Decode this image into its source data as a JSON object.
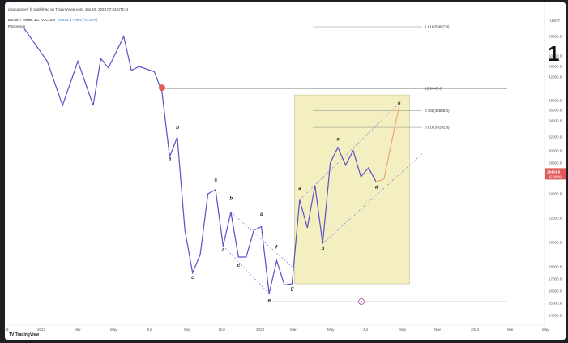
{
  "header": {
    "publisher": "josucabsher_fx published on TradingView.com, Jun 19, 2023 07:53 UTC-4",
    "symbol_line": "Bitcoin / Tether, 1D, KUCOIN",
    "price_info": "26424.5 +96.5 (+0.36%)",
    "indicator": "ParaVerde"
  },
  "annotation_number": "1",
  "footer": {
    "brand": "TradingView"
  },
  "chart_data": {
    "type": "line",
    "title": "",
    "ylabel": "USDT",
    "x_ticks": [
      "8",
      "2022",
      "Mar",
      "May",
      "Jul",
      "Sep",
      "Nov",
      "2023",
      "Mar",
      "May",
      "Jul",
      "Sep",
      "Nov",
      "2024",
      "Mar",
      "May"
    ],
    "y_ticks": [
      "55000.0",
      "50000.0",
      "46000.0",
      "42000.0",
      "38000.0",
      "36000.0",
      "34000.0",
      "32000.0",
      "30000.0",
      "28000.0",
      "26000.0",
      "24000.0",
      "22000.0",
      "20000.0",
      "18000.0",
      "17000.0",
      "16000.0",
      "15000.0",
      "14000.0"
    ],
    "price_path": [
      [
        0,
        57000
      ],
      [
        3,
        48000
      ],
      [
        5,
        37000
      ],
      [
        7,
        48000
      ],
      [
        9,
        37000
      ],
      [
        10,
        49000
      ],
      [
        11,
        45500
      ],
      [
        13,
        55000
      ],
      [
        14,
        44500
      ],
      [
        15,
        46000
      ],
      [
        17,
        44000
      ],
      [
        18,
        39500
      ],
      [
        19,
        29000
      ],
      [
        20,
        32000
      ],
      [
        21,
        21000
      ],
      [
        22,
        17500
      ],
      [
        23,
        19000
      ],
      [
        24,
        24000
      ],
      [
        25,
        24500
      ],
      [
        26,
        19700
      ],
      [
        27,
        22500
      ],
      [
        28,
        18800
      ],
      [
        29,
        18800
      ],
      [
        30,
        21000
      ],
      [
        31,
        21300
      ],
      [
        32,
        15800
      ],
      [
        33,
        18500
      ],
      [
        34,
        16500
      ],
      [
        35,
        16600
      ],
      [
        36,
        23500
      ],
      [
        37,
        21200
      ],
      [
        38,
        25000
      ],
      [
        39,
        19900
      ],
      [
        40,
        28000
      ],
      [
        41,
        30500
      ],
      [
        42,
        27700
      ],
      [
        43,
        30000
      ],
      [
        44,
        26000
      ],
      [
        45,
        27300
      ],
      [
        46,
        25400
      ]
    ],
    "projection": [
      [
        46,
        25400
      ],
      [
        47,
        25700
      ],
      [
        49,
        36800
      ]
    ],
    "wave_labels": [
      {
        "label": "a",
        "x": 19,
        "y": 28500
      },
      {
        "label": "b",
        "x": 20,
        "y": 33000
      },
      {
        "label": "c",
        "x": 22,
        "y": 17000
      },
      {
        "label": "a",
        "x": 25,
        "y": 25500
      },
      {
        "label": "b",
        "x": 27,
        "y": 23500
      },
      {
        "label": "a",
        "x": 26,
        "y": 19300
      },
      {
        "label": "c",
        "x": 28,
        "y": 18000
      },
      {
        "label": "d",
        "x": 31,
        "y": 22200
      },
      {
        "label": "e",
        "x": 32,
        "y": 15100
      },
      {
        "label": "f",
        "x": 33,
        "y": 19500
      },
      {
        "label": "g",
        "x": 35,
        "y": 16100
      },
      {
        "label": "a",
        "x": 36,
        "y": 24500
      },
      {
        "label": "b",
        "x": 39,
        "y": 19400
      },
      {
        "label": "c",
        "x": 41,
        "y": 31500
      },
      {
        "label": "d",
        "x": 46,
        "y": 24600
      },
      {
        "label": "e",
        "x": 49,
        "y": 37200
      }
    ],
    "fib_levels": [
      {
        "label": "1.618(53857.8)",
        "value": 53857.8
      },
      {
        "label": "1(39640.4)",
        "value": 39640.4
      },
      {
        "label": "0.786(35888.0)",
        "value": 35888.0
      },
      {
        "label": "0.618(33192.8)",
        "value": 33192.8
      }
    ],
    "current_price": {
      "value": "26424.5",
      "timer": "12:06:06"
    },
    "colors": {
      "price_line": "#5a50c8",
      "projection": "#f0a070",
      "fib_box": "#f4efc0",
      "channel": "#7a7ad8",
      "marker": "#e05a5a",
      "price_label_bg": "#e05a5a"
    }
  }
}
